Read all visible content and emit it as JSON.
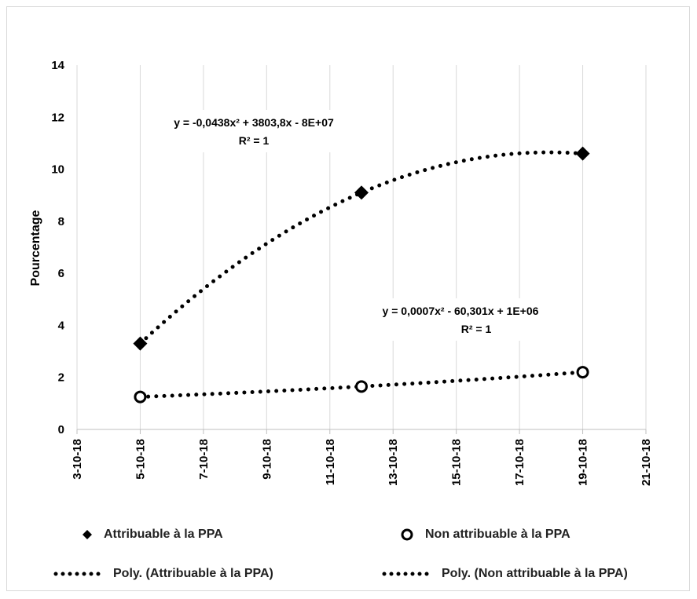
{
  "chart_data": {
    "type": "scatter",
    "ylabel": "Pourcentage",
    "xlabel": "",
    "ylim": [
      0,
      14
    ],
    "yticks": [
      0,
      2,
      4,
      6,
      8,
      10,
      12,
      14
    ],
    "xlim": [
      "3-10-18",
      "21-10-18"
    ],
    "xticks": [
      "3-10-18",
      "5-10-18",
      "7-10-18",
      "9-10-18",
      "11-10-18",
      "13-10-18",
      "15-10-18",
      "17-10-18",
      "19-10-18",
      "21-10-18"
    ],
    "grid": "vertical",
    "series": [
      {
        "name": "Attribuable à la PPA",
        "marker": "diamond",
        "color": "#000000",
        "points": [
          {
            "x": "5-10-18",
            "y": 3.3
          },
          {
            "x": "12-10-18",
            "y": 9.1
          },
          {
            "x": "19-10-18",
            "y": 10.6
          }
        ],
        "trendline": {
          "name": "Poly. (Attribuable à la PPA)",
          "equation": "y = -0,0438x² + 3803,8x - 8E+07",
          "r2": "R² = 1"
        }
      },
      {
        "name": "Non attribuable à la PPA",
        "marker": "circle-open",
        "color": "#000000",
        "points": [
          {
            "x": "5-10-18",
            "y": 1.25
          },
          {
            "x": "12-10-18",
            "y": 1.65
          },
          {
            "x": "19-10-18",
            "y": 2.2
          }
        ],
        "trendline": {
          "name": "Poly. (Non attribuable à la PPA)",
          "equation": "y = 0,0007x² - 60,301x + 1E+06",
          "r2": "R² = 1"
        }
      }
    ],
    "legend": {
      "position": "bottom",
      "items": [
        {
          "label": "Attribuable à la PPA",
          "symbol": "diamond"
        },
        {
          "label": "Non attribuable à la PPA",
          "symbol": "circle-open"
        },
        {
          "label": "Poly. (Attribuable à la PPA)",
          "symbol": "dotted-line"
        },
        {
          "label": "Poly. (Non attribuable à la PPA)",
          "symbol": "dotted-line"
        }
      ]
    }
  }
}
